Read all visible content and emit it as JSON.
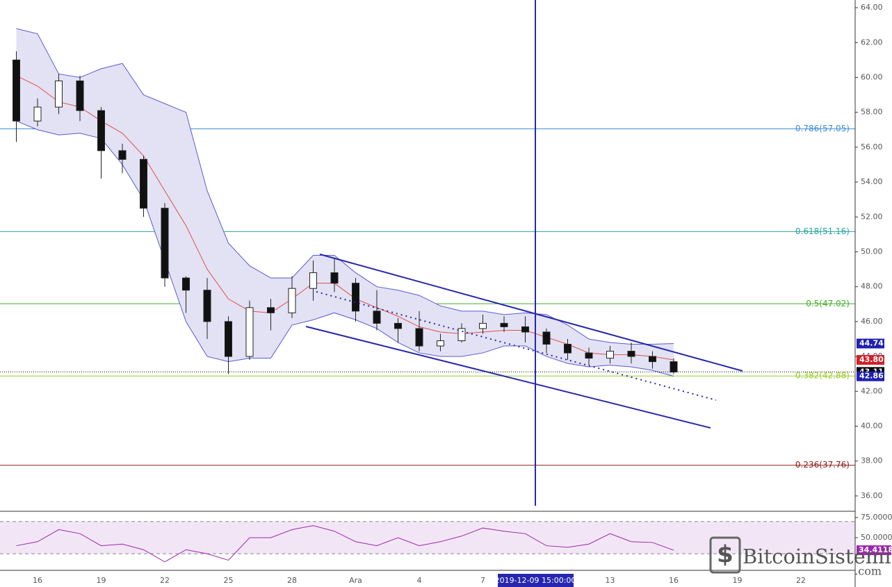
{
  "chart_data": {
    "type": "candlestick",
    "categories": [
      null,
      "16",
      null,
      null,
      "19",
      null,
      null,
      "22",
      null,
      null,
      "25",
      null,
      null,
      "28",
      null,
      null,
      "Ara",
      null,
      null,
      "4",
      null,
      null,
      "7",
      null,
      null,
      null,
      null,
      null,
      "13",
      null,
      null,
      "16",
      null,
      null,
      "19",
      null,
      null,
      "22"
    ],
    "open": [
      61,
      57.5,
      58.3,
      59.8,
      58.1,
      55.8,
      55.3,
      52.5,
      48.5,
      47.8,
      46,
      44,
      46.8,
      46.5,
      47.9,
      48.8,
      48.2,
      46.6,
      45.9,
      45.6,
      44.6,
      44.9,
      45.6,
      45.9,
      45.7,
      45.4,
      44.7,
      44.2,
      43.9,
      44.3,
      44,
      43.7,
      null,
      null,
      null,
      null,
      null,
      null
    ],
    "high": [
      61.5,
      58.8,
      60.2,
      60.1,
      58.3,
      56.2,
      55.5,
      52.8,
      48.6,
      48.5,
      46.3,
      47.2,
      47.3,
      48.6,
      49.5,
      49.6,
      48.5,
      47.8,
      46.2,
      46.6,
      45.3,
      45.9,
      46.4,
      46.3,
      46.3,
      45.6,
      45,
      44.5,
      44.6,
      44.8,
      44.3,
      43.9,
      null,
      null,
      null,
      null,
      null,
      null
    ],
    "low": [
      56.3,
      57.2,
      57.9,
      57.5,
      54.2,
      54.5,
      52,
      48,
      46.5,
      45,
      43,
      43.8,
      45.5,
      46.2,
      47.2,
      47.7,
      46,
      45.5,
      44.8,
      44.3,
      44.3,
      44.8,
      45.3,
      45.4,
      44.8,
      44.2,
      43.8,
      43.5,
      43.6,
      43.6,
      43.3,
      43,
      null,
      null,
      null,
      null,
      null,
      null
    ],
    "close": [
      57.5,
      58.3,
      59.8,
      58.1,
      55.8,
      55.3,
      52.5,
      48.5,
      47.8,
      46,
      44,
      46.8,
      46.5,
      47.9,
      48.8,
      48.2,
      46.6,
      45.9,
      45.6,
      44.6,
      44.9,
      45.6,
      45.9,
      45.7,
      45.4,
      44.7,
      44.2,
      43.9,
      44.3,
      44,
      43.7,
      43.11,
      null,
      null,
      null,
      null,
      null,
      null
    ],
    "bands": {
      "upper": [
        62.8,
        62.5,
        60.2,
        60,
        60.5,
        60.8,
        59,
        58.5,
        58,
        53.5,
        50.5,
        49.2,
        48.5,
        48.5,
        49.8,
        49.8,
        48.8,
        48,
        47.8,
        47.5,
        46.9,
        46.6,
        46.6,
        46.4,
        46.5,
        46.4,
        45.8,
        45,
        44.8,
        44.7,
        44.7,
        44.74,
        null,
        null,
        null,
        null,
        null,
        null
      ],
      "middle": [
        60.1,
        59.5,
        58.6,
        58.3,
        57.5,
        56.8,
        55.5,
        53.5,
        51.5,
        49,
        47.3,
        46.6,
        46.5,
        47.3,
        48.2,
        48.2,
        47.3,
        46.8,
        46.3,
        45.7,
        45.4,
        45.3,
        45.4,
        45.5,
        45.5,
        45.1,
        44.7,
        44.2,
        44.1,
        44.1,
        44,
        43.8,
        null,
        null,
        null,
        null,
        null,
        null
      ],
      "lower": [
        57.5,
        57,
        56.7,
        56.8,
        56.5,
        55,
        53,
        49.5,
        46,
        44,
        43.7,
        43.9,
        43.9,
        45.8,
        46.1,
        46.5,
        46.1,
        45.6,
        44.8,
        44.2,
        44,
        44,
        44.2,
        44.6,
        44.6,
        44,
        43.6,
        43.4,
        43.5,
        43.4,
        43.2,
        42.86,
        null,
        null,
        null,
        null,
        null,
        null
      ]
    },
    "colors": {
      "up": "#ffffff",
      "down": "#111111",
      "band": "#5a5ad2",
      "band_fill": "#e2e2f4",
      "middle": "#e0504a"
    },
    "ylim": [
      35.16,
      64.44
    ],
    "yticks": [
      {
        "value": 36,
        "label": "36.00"
      },
      {
        "value": 38,
        "label": "38.00"
      },
      {
        "value": 40,
        "label": "40.00"
      },
      {
        "value": 42,
        "label": "42.00"
      },
      {
        "value": 44,
        "label": "44.00"
      },
      {
        "value": 46,
        "label": "46.00"
      },
      {
        "value": 48,
        "label": "48.00"
      },
      {
        "value": 50,
        "label": "50.00"
      },
      {
        "value": 52,
        "label": "52.00"
      },
      {
        "value": 54,
        "label": "54.00"
      },
      {
        "value": 56,
        "label": "56.00"
      },
      {
        "value": 58,
        "label": "58.00"
      },
      {
        "value": 60,
        "label": "60.00"
      },
      {
        "value": 62,
        "label": "62.00"
      },
      {
        "value": 64,
        "label": "64.00"
      }
    ],
    "fib_levels": [
      {
        "value": 57.05,
        "label": "0.786(57.05)",
        "color": "#3f8fd0"
      },
      {
        "value": 51.16,
        "label": "0.618(51.16)",
        "color": "#26a69a"
      },
      {
        "value": 47.02,
        "label": "0.5(47.02)",
        "color": "#43b02a"
      },
      {
        "value": 42.88,
        "label": "0.382(42.88)",
        "color": "#9ccc2a"
      },
      {
        "value": 37.76,
        "label": "0.236(37.76)",
        "color": "#8b1a1a"
      }
    ],
    "price_badges": [
      {
        "value": 44.74,
        "label": "44.74",
        "color": "#1f20b0"
      },
      {
        "value": 43.8,
        "label": "43.80",
        "color": "#d0202a"
      },
      {
        "value": 43.11,
        "label": "43.11",
        "color": "#000000"
      },
      {
        "value": 42.86,
        "label": "42.86",
        "color": "#1f20b0"
      }
    ],
    "crosshair_label": "2019-12-09 15:00:00",
    "rsi": {
      "values": [
        40,
        45,
        60,
        55,
        40,
        42,
        35,
        20,
        35,
        30,
        22,
        50,
        50,
        60,
        65,
        58,
        45,
        40,
        50,
        40,
        45,
        52,
        62,
        58,
        55,
        40,
        38,
        42,
        55,
        45,
        44,
        34.4118,
        null,
        null,
        null,
        null,
        null,
        null
      ],
      "ylim": [
        10.3,
        81.9
      ],
      "yticks": [
        {
          "value": 75,
          "label": "75.0000"
        },
        {
          "value": 50,
          "label": "50.0000"
        }
      ],
      "bands": [
        30,
        70
      ],
      "color": "#9c27b0"
    }
  },
  "watermark": {
    "name": "BitcoinSistemi",
    "domain": ".com"
  }
}
